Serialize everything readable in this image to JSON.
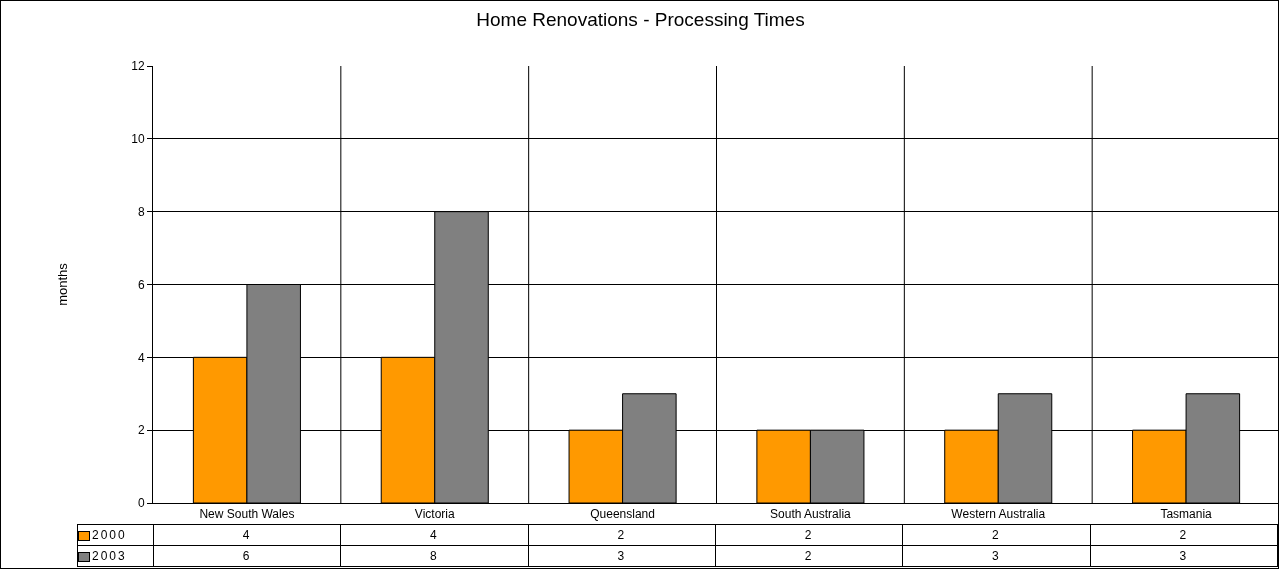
{
  "chart_data": {
    "type": "bar",
    "title": "Home Renovations - Processing Times",
    "ylabel": "months",
    "categories": [
      "New South Wales",
      "Victoria",
      "Queensland",
      "South Australia",
      "Western Australia",
      "Tasmania"
    ],
    "series": [
      {
        "name": "2000",
        "color": "#ff9900",
        "values": [
          4,
          4,
          2,
          2,
          2,
          2
        ]
      },
      {
        "name": "2003",
        "color": "#808080",
        "values": [
          6,
          8,
          3,
          2,
          3,
          3
        ]
      }
    ],
    "ylim": [
      0,
      12
    ],
    "yticks": [
      0,
      2,
      4,
      6,
      8,
      10,
      12
    ],
    "grid": true,
    "legend": "bottom left",
    "data_labels": true
  }
}
